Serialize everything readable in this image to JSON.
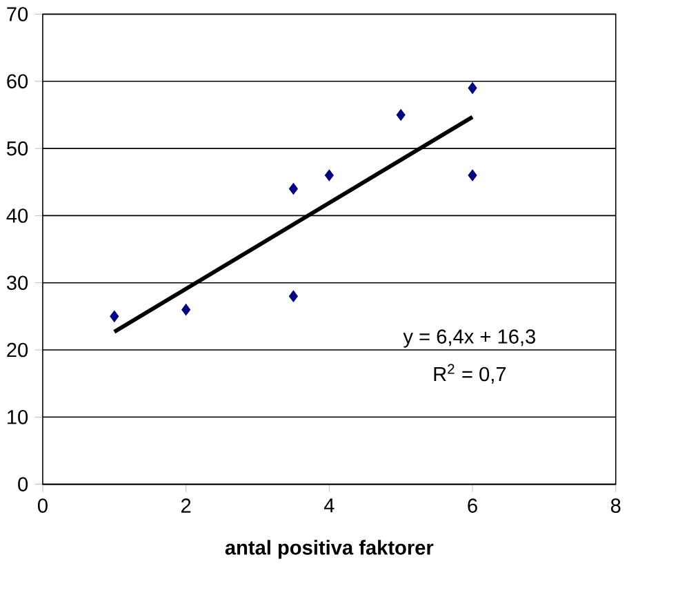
{
  "chart_data": {
    "type": "scatter",
    "xlabel": "antal positiva faktorer",
    "xlim": [
      0,
      8
    ],
    "xticks": [
      0,
      2,
      4,
      6,
      8
    ],
    "ylim": [
      0,
      70
    ],
    "yticks": [
      0,
      10,
      20,
      30,
      40,
      50,
      60,
      70
    ],
    "grid": "y",
    "series": [
      {
        "marker": "diamond",
        "color": "#000080",
        "x": [
          1,
          2,
          3.5,
          3.5,
          4,
          5,
          6,
          6
        ],
        "values": [
          25,
          26,
          44,
          28,
          46,
          55,
          59,
          46
        ]
      },
      {
        "type": "line",
        "marker": "none",
        "color": "#000000",
        "x": [
          1,
          6
        ],
        "values": [
          22.7,
          54.7
        ]
      }
    ],
    "annotations": [
      "y = 6,4x + 16,3",
      "R$^{2}$ = 0,7"
    ]
  }
}
